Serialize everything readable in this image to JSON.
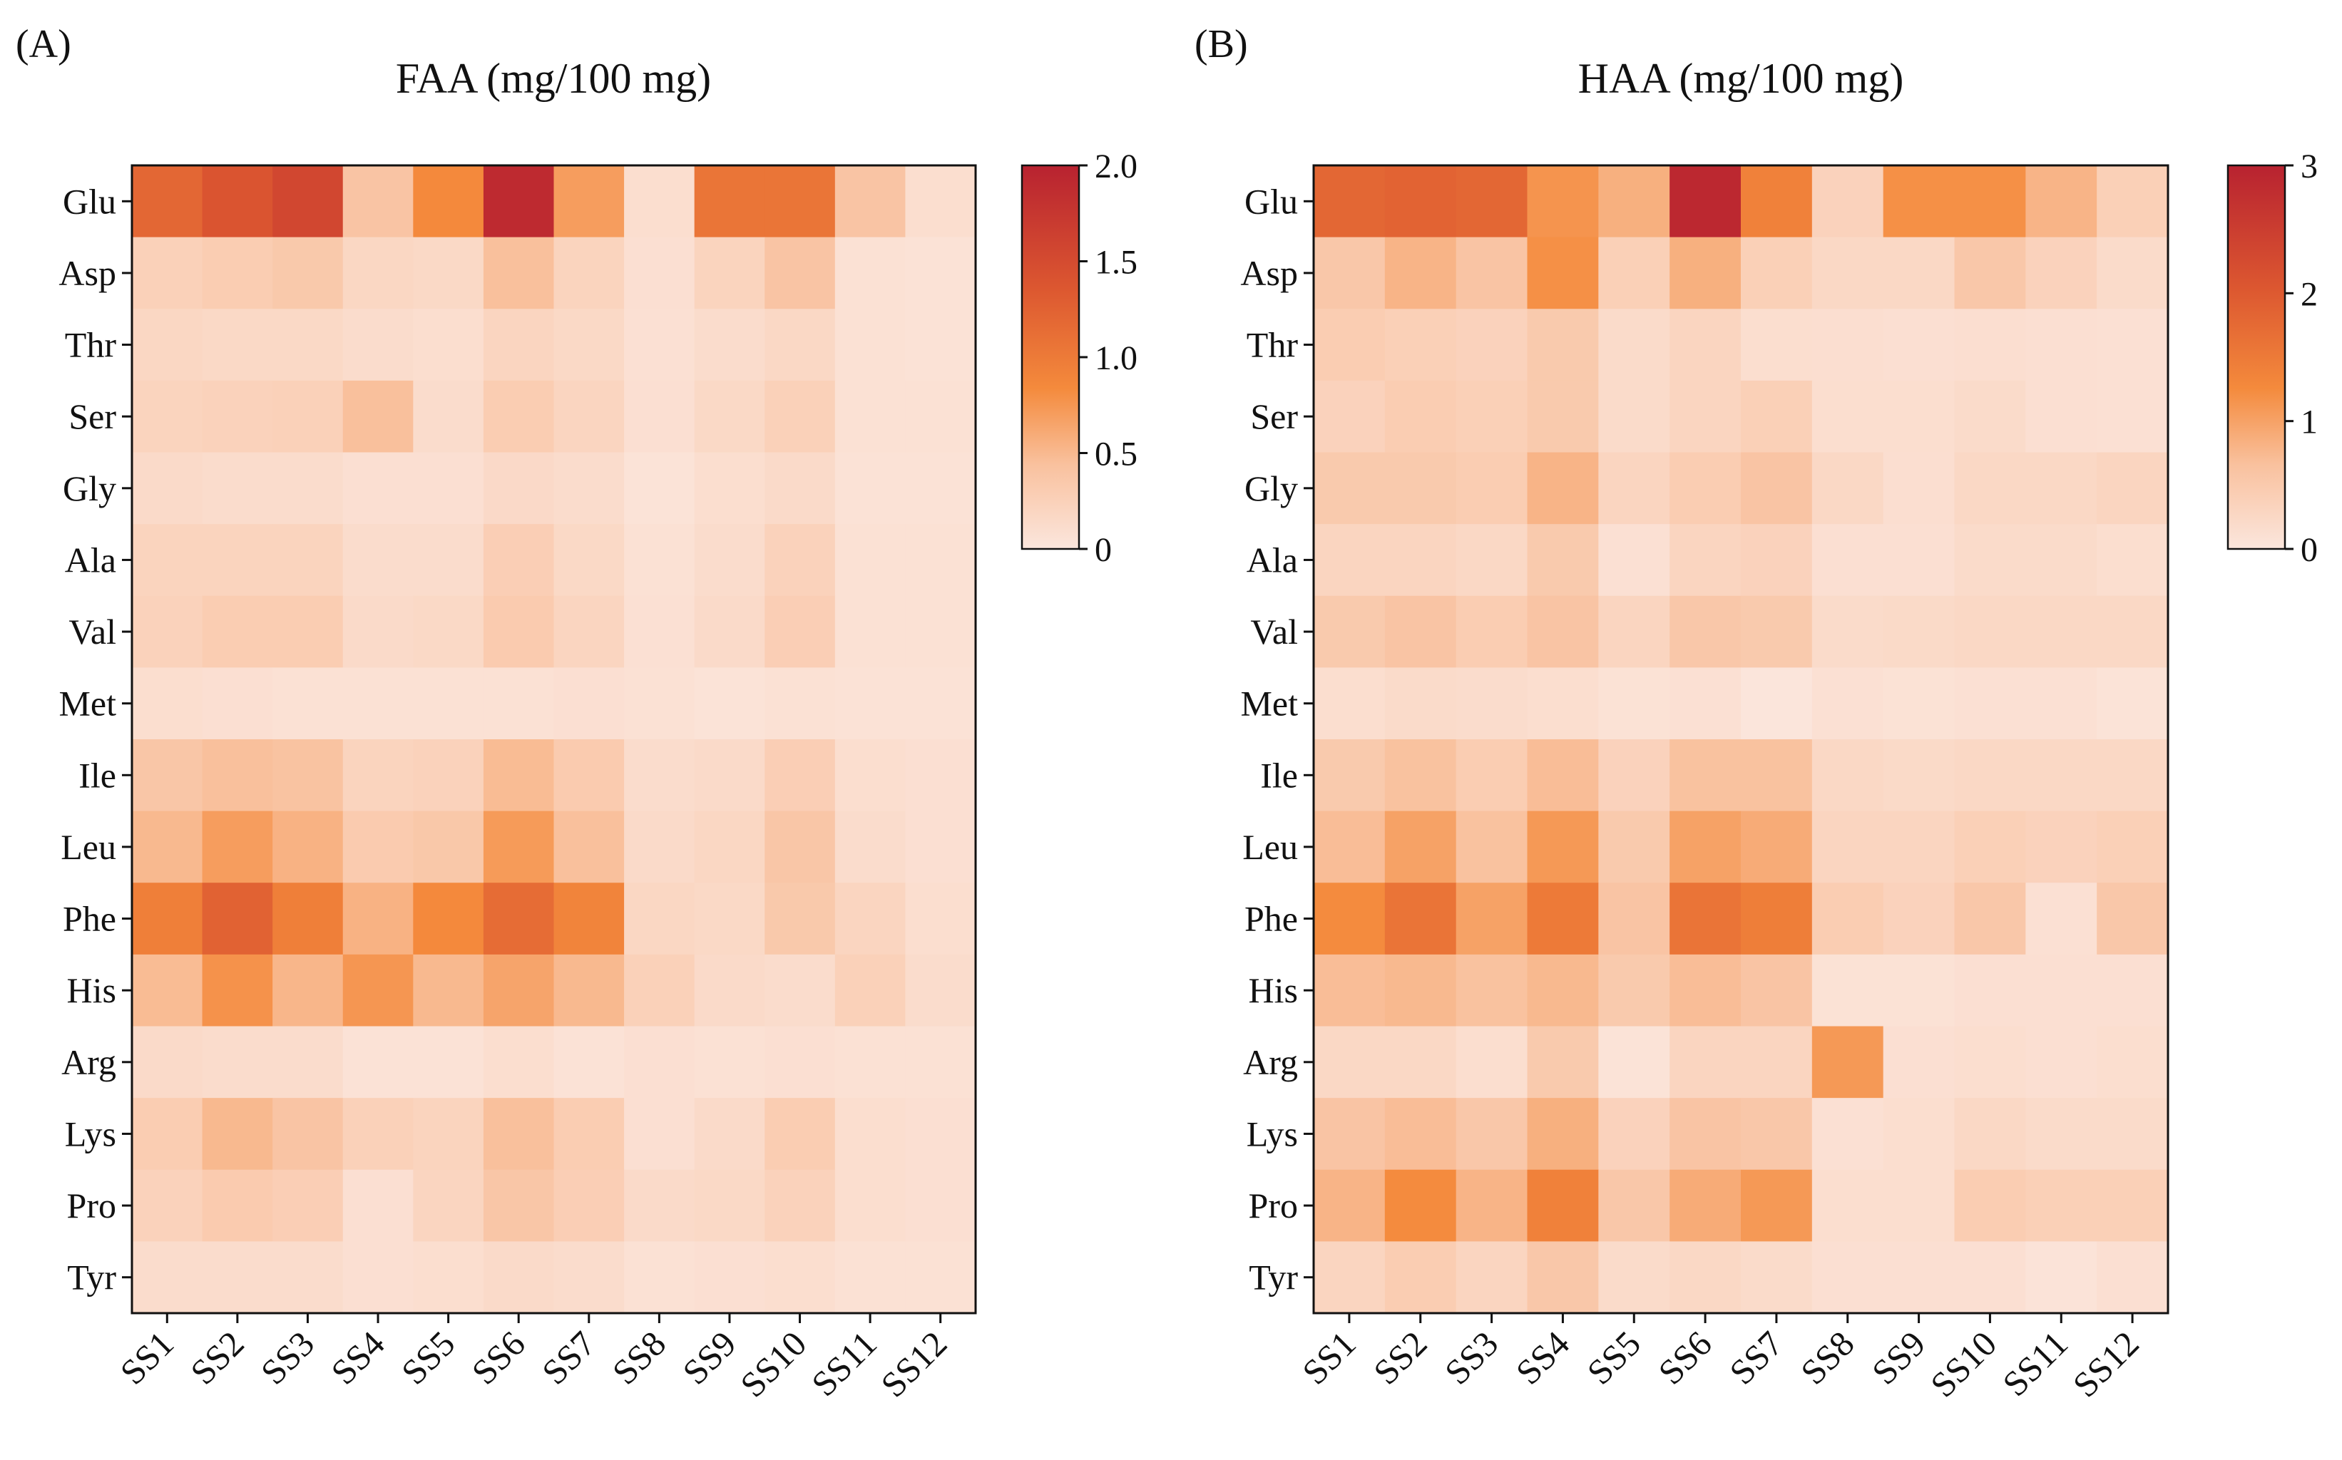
{
  "panels": [
    {
      "panel_label": "(A)",
      "title": "FAA (mg/100 mg)",
      "colorbar": {
        "min": 0,
        "max": 2.0,
        "ticks": [
          "0",
          "0.5",
          "1.0",
          "1.5",
          "2.0"
        ],
        "tick_values": [
          0,
          0.5,
          1.0,
          1.5,
          2.0
        ]
      }
    },
    {
      "panel_label": "(B)",
      "title": "HAA (mg/100 mg)",
      "colorbar": {
        "min": 0,
        "max": 3,
        "ticks": [
          "0",
          "1",
          "2",
          "3"
        ],
        "tick_values": [
          0,
          1,
          2,
          3
        ]
      }
    }
  ],
  "colors": {
    "scale": [
      "#fbe6dd",
      "#f9c19e",
      "#f48a3c",
      "#dc5730",
      "#b82230"
    ],
    "scale_stops": [
      0,
      0.22,
      0.42,
      0.68,
      1.0
    ],
    "axis": "#111111"
  },
  "chart_data": [
    {
      "type": "heatmap",
      "title": "FAA (mg/100 mg)",
      "x": [
        "SS1",
        "SS2",
        "SS3",
        "SS4",
        "SS5",
        "SS6",
        "SS7",
        "SS8",
        "SS9",
        "SS10",
        "SS11",
        "SS12"
      ],
      "y": [
        "Glu",
        "Asp",
        "Thr",
        "Ser",
        "Gly",
        "Ala",
        "Val",
        "Met",
        "Ile",
        "Leu",
        "Phe",
        "His",
        "Arg",
        "Lys",
        "Pro",
        "Tyr"
      ],
      "zlim": [
        0,
        2.0
      ],
      "values": [
        [
          1.2,
          1.4,
          1.55,
          0.4,
          0.85,
          1.9,
          0.7,
          0.1,
          1.05,
          1.05,
          0.4,
          0.1
        ],
        [
          0.25,
          0.3,
          0.35,
          0.18,
          0.16,
          0.45,
          0.22,
          0.08,
          0.22,
          0.4,
          0.06,
          0.05
        ],
        [
          0.18,
          0.16,
          0.16,
          0.12,
          0.1,
          0.2,
          0.16,
          0.07,
          0.12,
          0.17,
          0.06,
          0.05
        ],
        [
          0.22,
          0.24,
          0.25,
          0.45,
          0.12,
          0.3,
          0.2,
          0.08,
          0.16,
          0.25,
          0.06,
          0.06
        ],
        [
          0.14,
          0.12,
          0.12,
          0.08,
          0.08,
          0.15,
          0.12,
          0.04,
          0.1,
          0.14,
          0.05,
          0.05
        ],
        [
          0.22,
          0.22,
          0.22,
          0.12,
          0.12,
          0.28,
          0.16,
          0.06,
          0.12,
          0.24,
          0.06,
          0.06
        ],
        [
          0.24,
          0.3,
          0.3,
          0.14,
          0.16,
          0.32,
          0.2,
          0.07,
          0.14,
          0.28,
          0.06,
          0.06
        ],
        [
          0.1,
          0.08,
          0.06,
          0.06,
          0.06,
          0.06,
          0.08,
          0.06,
          0.04,
          0.06,
          0.05,
          0.05
        ],
        [
          0.38,
          0.45,
          0.42,
          0.22,
          0.24,
          0.48,
          0.32,
          0.12,
          0.14,
          0.28,
          0.1,
          0.08
        ],
        [
          0.5,
          0.7,
          0.55,
          0.32,
          0.36,
          0.72,
          0.45,
          0.14,
          0.18,
          0.38,
          0.12,
          0.08
        ],
        [
          0.95,
          1.25,
          0.95,
          0.55,
          0.85,
          1.15,
          0.9,
          0.18,
          0.16,
          0.35,
          0.2,
          0.1
        ],
        [
          0.48,
          0.78,
          0.52,
          0.75,
          0.5,
          0.65,
          0.5,
          0.25,
          0.14,
          0.12,
          0.25,
          0.12
        ],
        [
          0.14,
          0.12,
          0.12,
          0.05,
          0.05,
          0.1,
          0.05,
          0.08,
          0.06,
          0.08,
          0.06,
          0.06
        ],
        [
          0.3,
          0.5,
          0.4,
          0.25,
          0.22,
          0.45,
          0.3,
          0.08,
          0.14,
          0.3,
          0.1,
          0.08
        ],
        [
          0.24,
          0.32,
          0.28,
          0.08,
          0.2,
          0.38,
          0.28,
          0.14,
          0.16,
          0.24,
          0.1,
          0.08
        ],
        [
          0.12,
          0.12,
          0.12,
          0.08,
          0.1,
          0.14,
          0.12,
          0.06,
          0.08,
          0.1,
          0.06,
          0.06
        ]
      ]
    },
    {
      "type": "heatmap",
      "title": "HAA (mg/100 mg)",
      "x": [
        "SS1",
        "SS2",
        "SS3",
        "SS4",
        "SS5",
        "SS6",
        "SS7",
        "SS8",
        "SS9",
        "SS10",
        "SS11",
        "SS12"
      ],
      "y": [
        "Glu",
        "Asp",
        "Thr",
        "Ser",
        "Gly",
        "Ala",
        "Val",
        "Met",
        "Ile",
        "Leu",
        "Phe",
        "His",
        "Arg",
        "Lys",
        "Pro",
        "Tyr"
      ],
      "zlim": [
        0,
        3
      ],
      "values": [
        [
          1.8,
          1.85,
          1.8,
          1.15,
          0.85,
          2.9,
          1.4,
          0.35,
          1.2,
          1.2,
          0.8,
          0.4
        ],
        [
          0.55,
          0.8,
          0.6,
          1.2,
          0.4,
          0.85,
          0.4,
          0.25,
          0.25,
          0.55,
          0.35,
          0.2
        ],
        [
          0.45,
          0.4,
          0.35,
          0.5,
          0.2,
          0.3,
          0.15,
          0.14,
          0.12,
          0.14,
          0.12,
          0.1
        ],
        [
          0.35,
          0.45,
          0.4,
          0.5,
          0.2,
          0.3,
          0.4,
          0.15,
          0.15,
          0.2,
          0.12,
          0.1
        ],
        [
          0.5,
          0.5,
          0.45,
          0.8,
          0.3,
          0.45,
          0.6,
          0.25,
          0.14,
          0.25,
          0.25,
          0.3
        ],
        [
          0.3,
          0.3,
          0.25,
          0.5,
          0.1,
          0.3,
          0.35,
          0.12,
          0.12,
          0.2,
          0.2,
          0.15
        ],
        [
          0.5,
          0.6,
          0.45,
          0.6,
          0.3,
          0.55,
          0.5,
          0.2,
          0.22,
          0.25,
          0.25,
          0.25
        ],
        [
          0.15,
          0.2,
          0.18,
          0.15,
          0.08,
          0.1,
          0.02,
          0.1,
          0.08,
          0.1,
          0.1,
          0.06
        ],
        [
          0.5,
          0.65,
          0.45,
          0.7,
          0.35,
          0.65,
          0.65,
          0.25,
          0.22,
          0.25,
          0.25,
          0.25
        ],
        [
          0.7,
          1.0,
          0.65,
          1.1,
          0.5,
          1.0,
          0.9,
          0.3,
          0.3,
          0.4,
          0.35,
          0.4
        ],
        [
          1.25,
          1.6,
          1.0,
          1.5,
          0.6,
          1.6,
          1.45,
          0.45,
          0.35,
          0.55,
          0.1,
          0.55
        ],
        [
          0.7,
          0.75,
          0.65,
          0.75,
          0.5,
          0.7,
          0.6,
          0.08,
          0.08,
          0.12,
          0.12,
          0.12
        ],
        [
          0.25,
          0.25,
          0.15,
          0.5,
          0.06,
          0.3,
          0.3,
          1.1,
          0.12,
          0.15,
          0.12,
          0.15
        ],
        [
          0.6,
          0.7,
          0.55,
          0.85,
          0.35,
          0.6,
          0.55,
          0.1,
          0.15,
          0.25,
          0.2,
          0.2
        ],
        [
          0.8,
          1.25,
          0.8,
          1.4,
          0.55,
          0.9,
          1.1,
          0.15,
          0.15,
          0.45,
          0.4,
          0.4
        ],
        [
          0.3,
          0.45,
          0.3,
          0.55,
          0.2,
          0.25,
          0.2,
          0.12,
          0.12,
          0.12,
          0.05,
          0.12
        ]
      ]
    }
  ]
}
